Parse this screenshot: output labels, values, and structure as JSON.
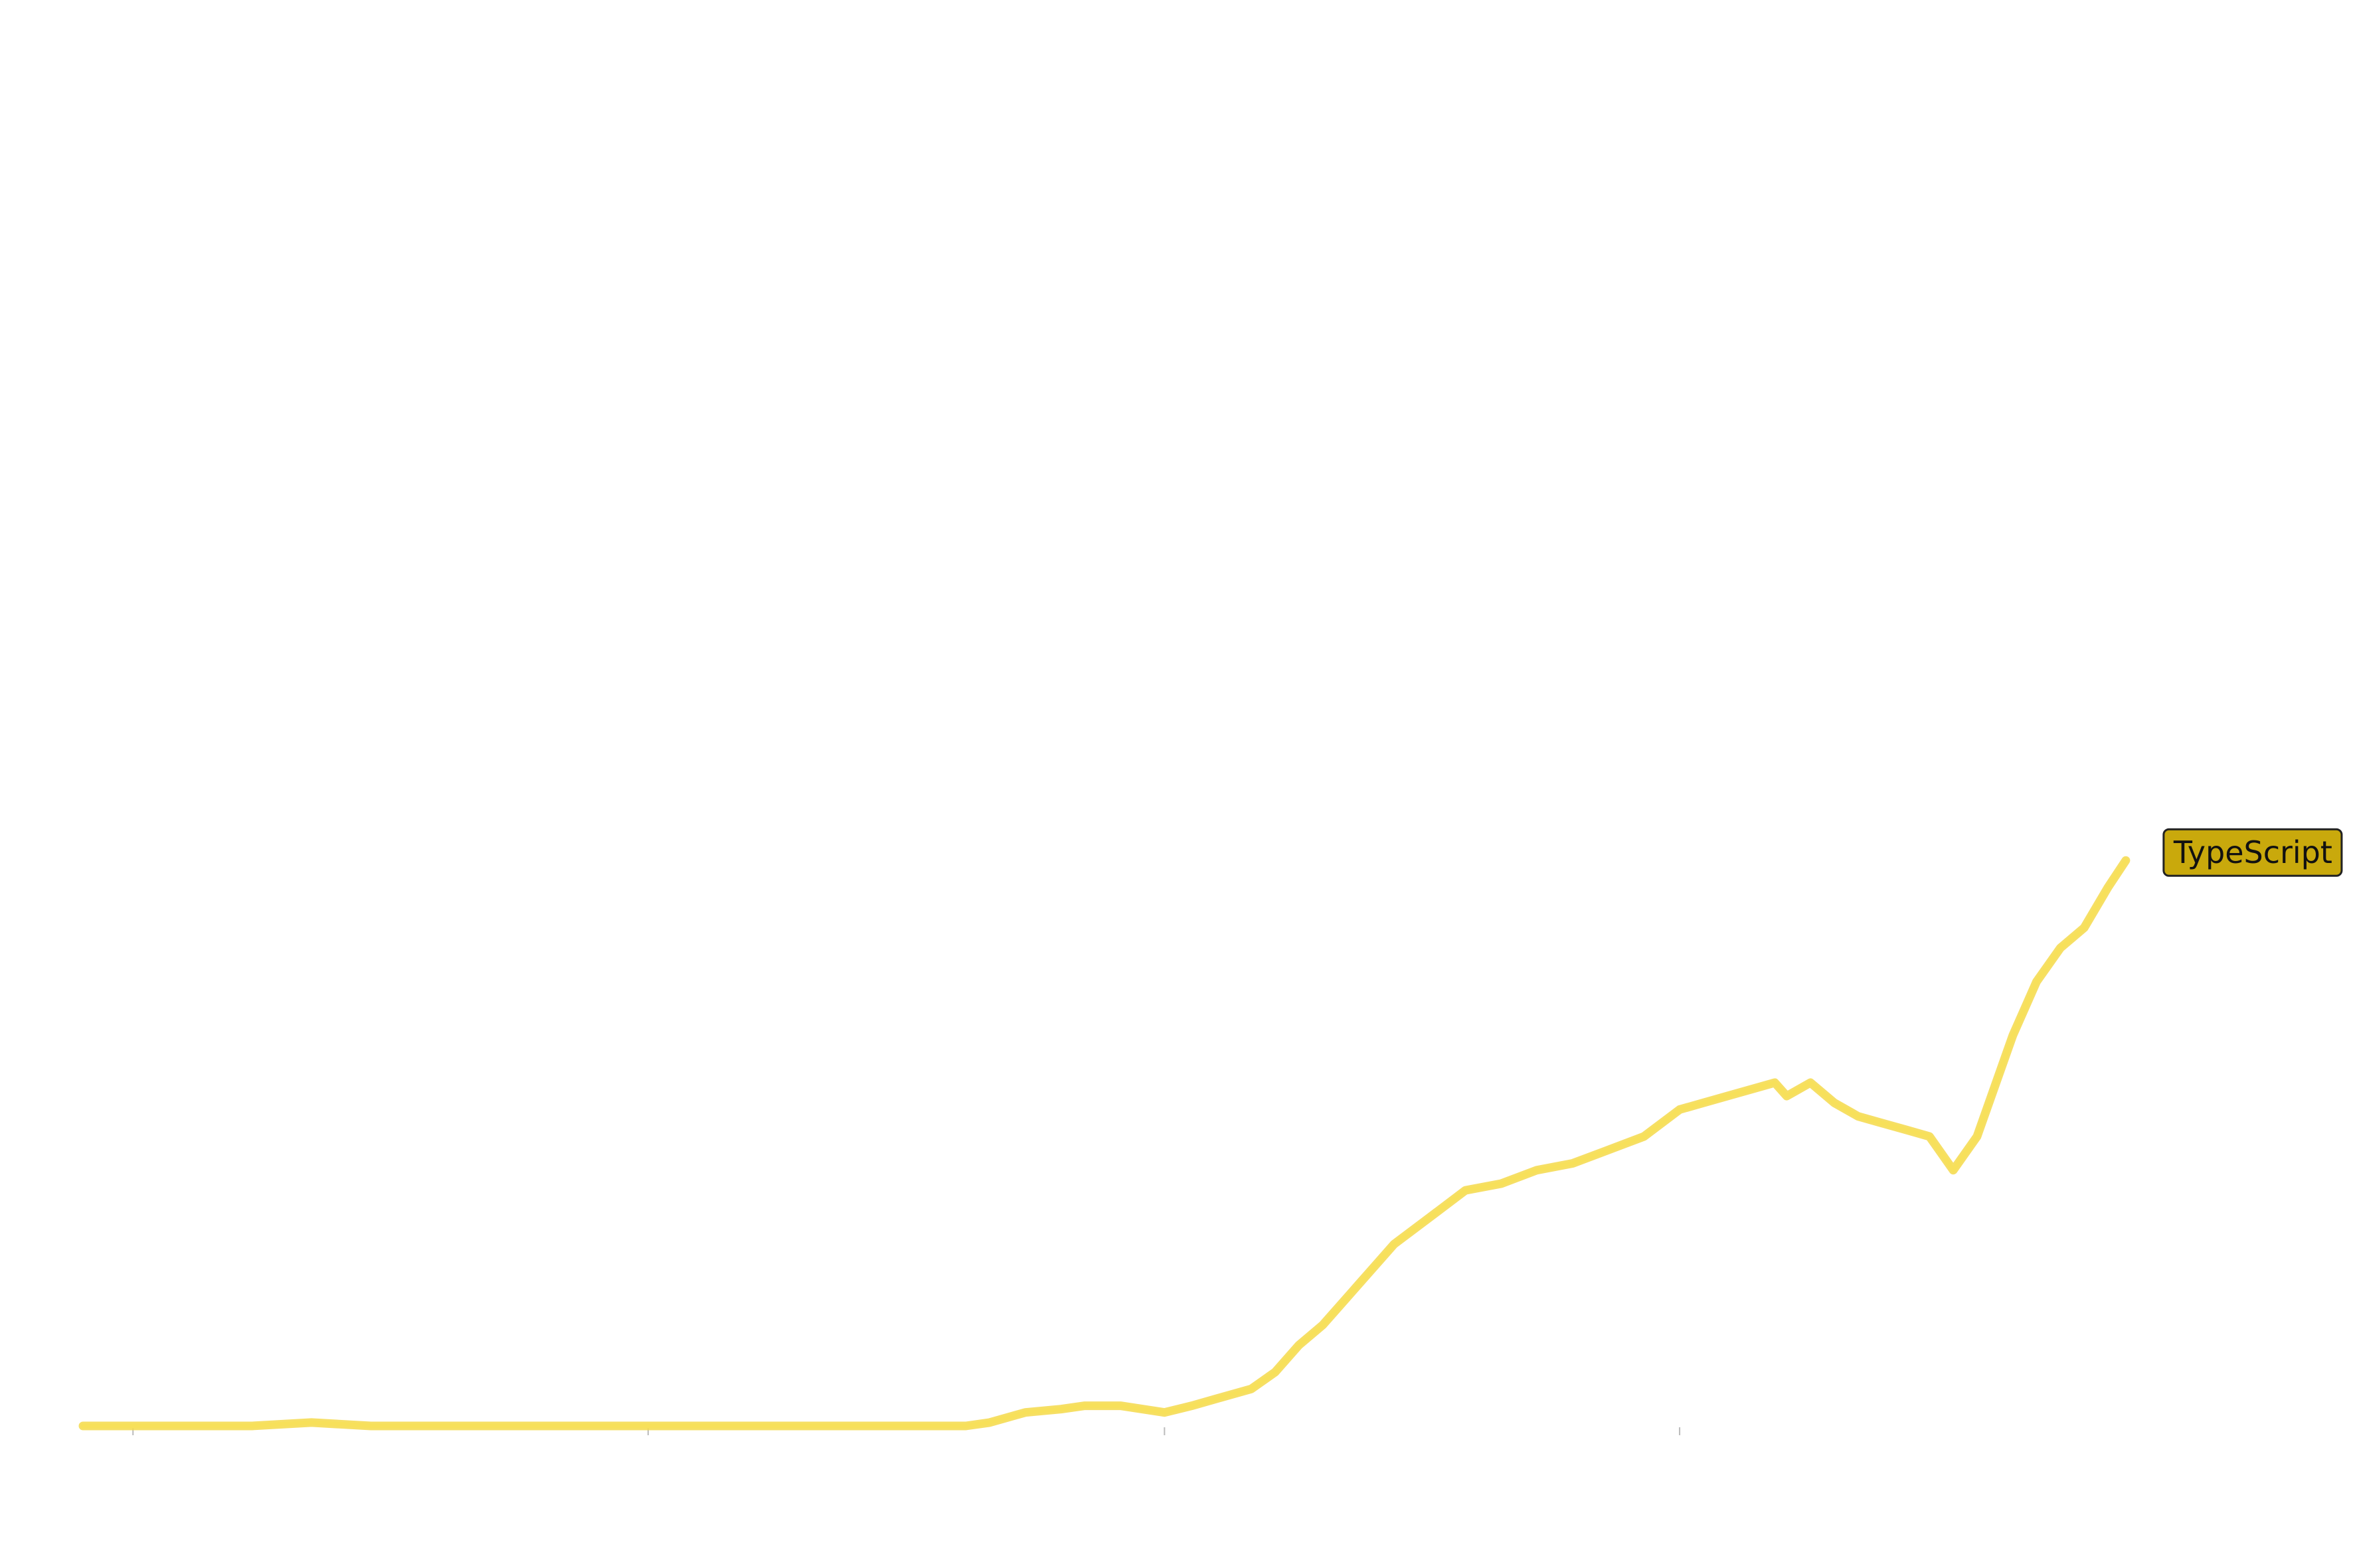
{
  "chart_data": {
    "type": "line",
    "title": "",
    "xlabel": "",
    "ylabel": "",
    "xlim": [
      2008.58,
      2026.75
    ],
    "ylim": [
      0,
      20
    ],
    "x_ticks": [
      2009,
      2013.33,
      2017.67,
      2022
    ],
    "grid": false,
    "legend": "none",
    "series": [
      {
        "name": "TypeScript",
        "color": "#f5d94a",
        "label_color": "#c9a90c",
        "x": [
          2008.58,
          2009,
          2009.5,
          2010,
          2010.5,
          2011,
          2011.5,
          2012,
          2012.5,
          2013,
          2013.5,
          2014,
          2014.5,
          2015,
          2015.5,
          2016,
          2016.2,
          2016.5,
          2016.8,
          2017,
          2017.3,
          2017.67,
          2017.9,
          2018.1,
          2018.4,
          2018.6,
          2018.8,
          2019,
          2019.3,
          2019.6,
          2019.9,
          2020.2,
          2020.5,
          2020.8,
          2021.1,
          2021.4,
          2021.7,
          2022,
          2022.2,
          2022.4,
          2022.6,
          2022.8,
          2022.9,
          2023.1,
          2023.3,
          2023.5,
          2023.7,
          2023.9,
          2024.1,
          2024.3,
          2024.5,
          2024.8,
          2025.0,
          2025.2,
          2025.4,
          2025.6,
          2025.75
        ],
        "values": [
          0,
          0,
          0,
          0,
          0.05,
          0,
          0,
          0,
          0,
          0,
          0,
          0,
          0,
          0,
          0,
          0,
          0.05,
          0.2,
          0.25,
          0.3,
          0.3,
          0.2,
          0.3,
          0.4,
          0.55,
          0.8,
          1.2,
          1.5,
          2.1,
          2.7,
          3.1,
          3.5,
          3.6,
          3.8,
          3.9,
          4.1,
          4.3,
          4.7,
          4.8,
          4.9,
          5.0,
          5.1,
          4.9,
          5.1,
          4.8,
          4.6,
          4.5,
          4.4,
          4.3,
          3.8,
          4.3,
          5.8,
          6.6,
          7.1,
          7.4,
          8.0,
          8.4
        ]
      }
    ]
  }
}
